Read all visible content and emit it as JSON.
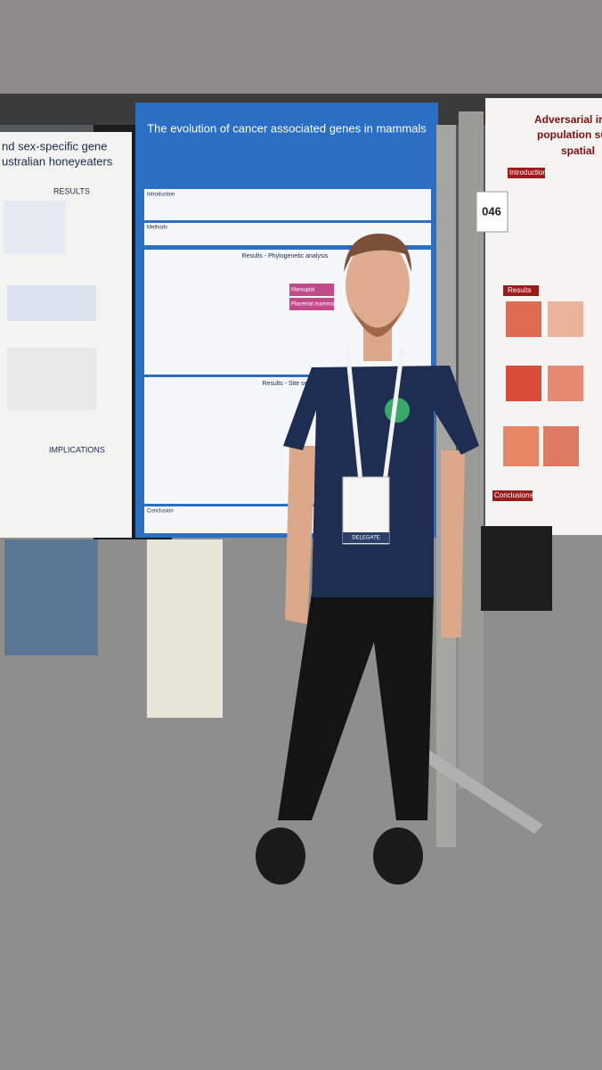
{
  "left_poster": {
    "title_line1": "nd sex-specific gene",
    "title_line2": "ustralian honeyeaters",
    "section1": "RESULTS",
    "section2": "IMPLICATIONS"
  },
  "center_poster": {
    "title": "The evolution of cancer associated genes in mammals",
    "intro": "Introduction",
    "methods": "Methods",
    "results1": "Results - Phylogenetic analysis",
    "results2": "Results - Site selection",
    "legend1": "Marsupial",
    "legend2": "Placental mammals",
    "conclusion": "Conclusion"
  },
  "right_poster": {
    "title_line1": "Adversarial inter",
    "title_line2": "population sup",
    "title_line3": "spatial",
    "intro": "Introduction",
    "results": "Results",
    "conclusions": "Conclusions",
    "number": "046"
  },
  "badge": {
    "label": "DELEGATE"
  }
}
